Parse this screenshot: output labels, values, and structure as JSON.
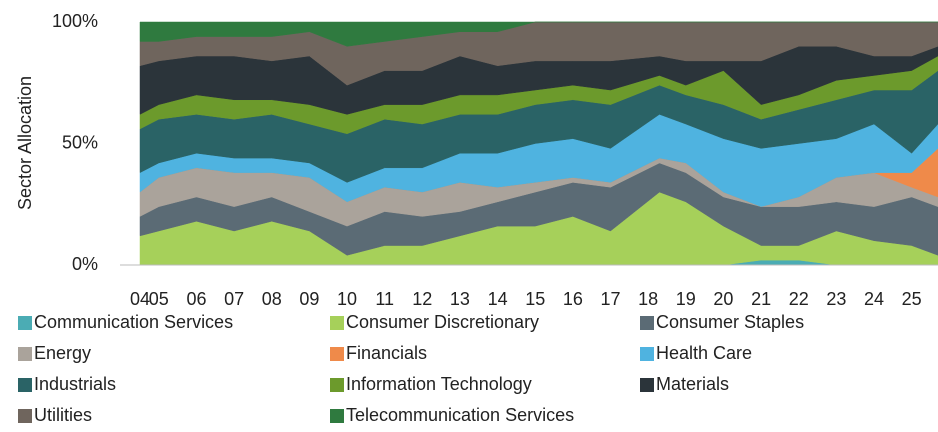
{
  "chart_data": {
    "type": "stacked_area",
    "y_label": "Sector Allocation",
    "x": [
      2004.5,
      2005,
      2006,
      2007,
      2008,
      2009,
      2010,
      2011,
      2012,
      2013,
      2014,
      2015,
      2016,
      2017,
      2018.3,
      2019,
      2020,
      2021,
      2022,
      2023,
      2024,
      2025,
      2025.7
    ],
    "xlim": [
      2004.5,
      2025.7
    ],
    "xticks": [
      {
        "value": 2004.5,
        "label": "04"
      },
      {
        "value": 2005,
        "label": "05"
      },
      {
        "value": 2006,
        "label": "06"
      },
      {
        "value": 2007,
        "label": "07"
      },
      {
        "value": 2008,
        "label": "08"
      },
      {
        "value": 2009,
        "label": "09"
      },
      {
        "value": 2010,
        "label": "10"
      },
      {
        "value": 2011,
        "label": "11"
      },
      {
        "value": 2012,
        "label": "12"
      },
      {
        "value": 2013,
        "label": "13"
      },
      {
        "value": 2014,
        "label": "14"
      },
      {
        "value": 2015,
        "label": "15"
      },
      {
        "value": 2016,
        "label": "16"
      },
      {
        "value": 2017,
        "label": "17"
      },
      {
        "value": 2018,
        "label": "18"
      },
      {
        "value": 2019,
        "label": "19"
      },
      {
        "value": 2020,
        "label": "20"
      },
      {
        "value": 2021,
        "label": "21"
      },
      {
        "value": 2022,
        "label": "22"
      },
      {
        "value": 2023,
        "label": "23"
      },
      {
        "value": 2024,
        "label": "24"
      },
      {
        "value": 2025,
        "label": "25"
      }
    ],
    "ylim": [
      0,
      100
    ],
    "yticks": [
      {
        "value": 0,
        "label": "0%"
      },
      {
        "value": 50,
        "label": "50%"
      },
      {
        "value": 100,
        "label": "100%"
      }
    ],
    "series": [
      {
        "name": "Communication Services",
        "color": "#4bacb4",
        "values": [
          0,
          0,
          0,
          0,
          0,
          0,
          0,
          0,
          0,
          0,
          0,
          0,
          0,
          0,
          0,
          0,
          0,
          2,
          2,
          0,
          0,
          0,
          0
        ]
      },
      {
        "name": "Consumer Discretionary",
        "color": "#a6d05a",
        "values": [
          12,
          14,
          18,
          14,
          18,
          14,
          4,
          8,
          8,
          12,
          16,
          16,
          20,
          14,
          30,
          26,
          16,
          6,
          6,
          14,
          10,
          8,
          4
        ]
      },
      {
        "name": "Consumer Staples",
        "color": "#5b6b75",
        "values": [
          8,
          10,
          10,
          10,
          10,
          8,
          12,
          14,
          12,
          10,
          10,
          14,
          14,
          18,
          12,
          12,
          12,
          16,
          16,
          12,
          14,
          20,
          20
        ]
      },
      {
        "name": "Energy",
        "color": "#aaa39b",
        "values": [
          10,
          12,
          12,
          14,
          10,
          14,
          10,
          10,
          10,
          12,
          6,
          4,
          2,
          2,
          2,
          4,
          2,
          0,
          4,
          10,
          14,
          4,
          4
        ]
      },
      {
        "name": "Financials",
        "color": "#ef8a4a",
        "values": [
          0,
          0,
          0,
          0,
          0,
          0,
          0,
          0,
          0,
          0,
          0,
          0,
          0,
          0,
          0,
          0,
          0,
          0,
          0,
          0,
          0,
          6,
          20
        ]
      },
      {
        "name": "Health Care",
        "color": "#4fb3e0",
        "values": [
          8,
          6,
          6,
          6,
          6,
          6,
          8,
          8,
          10,
          12,
          14,
          16,
          16,
          14,
          18,
          16,
          22,
          24,
          22,
          16,
          20,
          8,
          10
        ]
      },
      {
        "name": "Industrials",
        "color": "#2a6366",
        "values": [
          18,
          18,
          16,
          16,
          18,
          16,
          20,
          20,
          18,
          16,
          16,
          16,
          16,
          18,
          12,
          12,
          14,
          12,
          14,
          16,
          14,
          26,
          22
        ]
      },
      {
        "name": "Information Technology",
        "color": "#6c9a2c",
        "values": [
          6,
          6,
          8,
          8,
          6,
          8,
          8,
          6,
          8,
          8,
          8,
          6,
          6,
          6,
          4,
          4,
          14,
          6,
          6,
          8,
          6,
          8,
          6
        ]
      },
      {
        "name": "Materials",
        "color": "#2b343a",
        "values": [
          20,
          18,
          16,
          18,
          16,
          20,
          12,
          14,
          14,
          16,
          12,
          12,
          10,
          12,
          8,
          10,
          4,
          18,
          20,
          14,
          8,
          6,
          4
        ]
      },
      {
        "name": "Utilities",
        "color": "#6f655d",
        "values": [
          10,
          8,
          8,
          8,
          10,
          10,
          16,
          12,
          14,
          10,
          14,
          16,
          16,
          16,
          14,
          16,
          16,
          16,
          10,
          10,
          14,
          14,
          10
        ]
      },
      {
        "name": "Telecommunication Services",
        "color": "#2f7a3f",
        "values": [
          8,
          8,
          6,
          6,
          6,
          4,
          10,
          8,
          6,
          4,
          4,
          0,
          0,
          0,
          0,
          0,
          0,
          0,
          0,
          0,
          0,
          0,
          0
        ]
      }
    ]
  }
}
